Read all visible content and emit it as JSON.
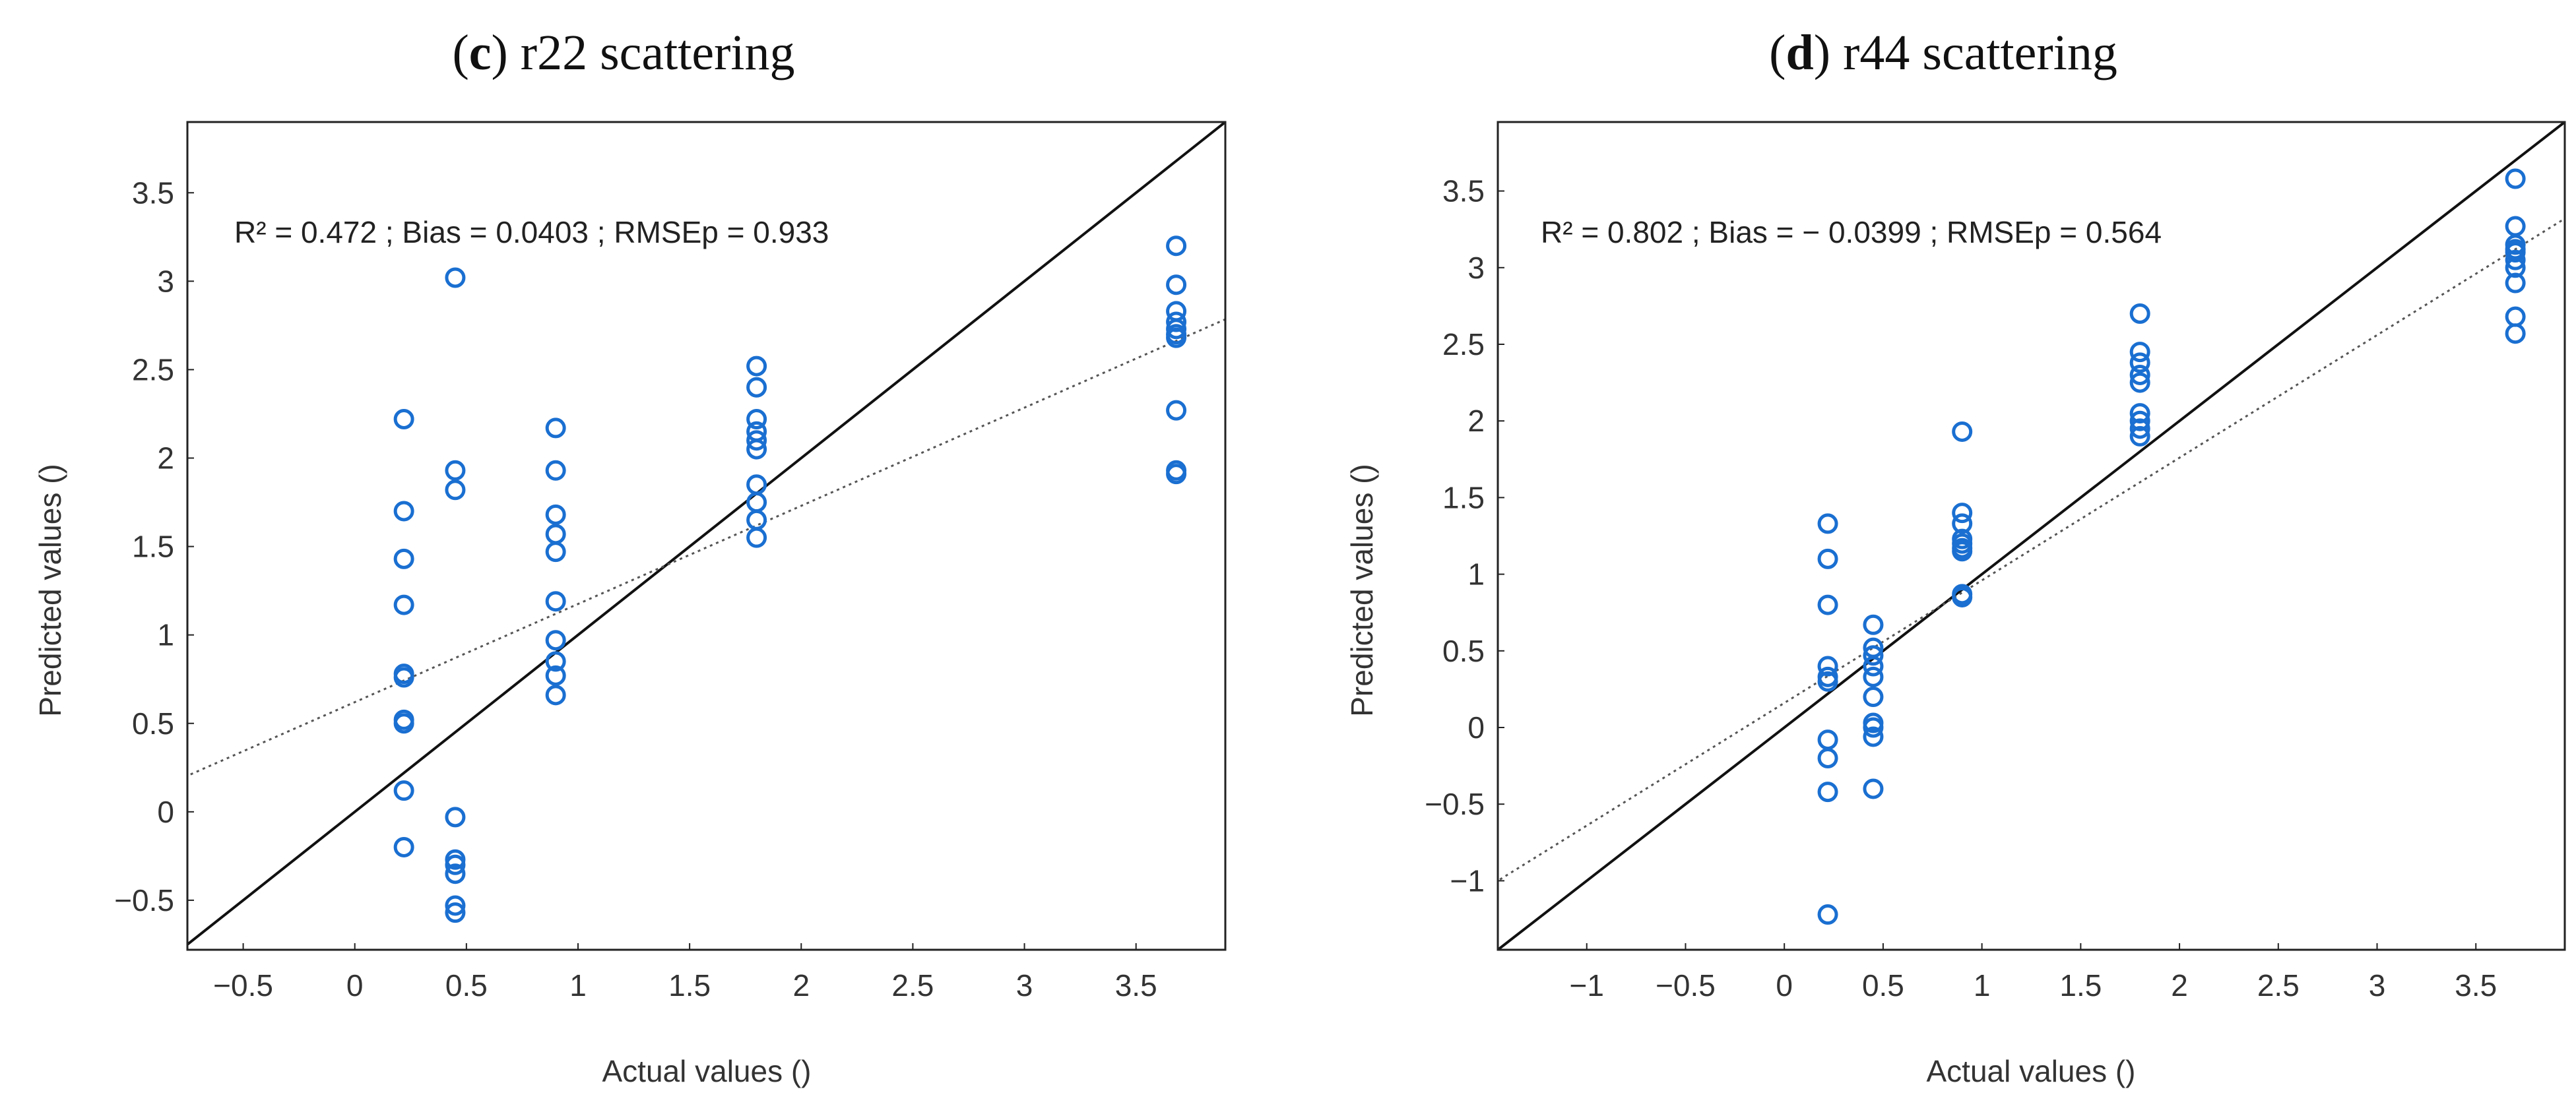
{
  "chart_data": [
    {
      "type": "scatter",
      "title_letter": "c",
      "title_rest": " r22 scattering",
      "xlabel": "Actual values ()",
      "ylabel": "Predicted values ()",
      "annotation": "R² = 0.472 ; Bias = 0.0403 ; RMSEp = 0.933",
      "xlim": [
        -0.75,
        3.9
      ],
      "ylim": [
        -0.78,
        3.9
      ],
      "xticks": [
        -0.5,
        0,
        0.5,
        1,
        1.5,
        2,
        2.5,
        3,
        3.5
      ],
      "xtick_labels": [
        "−0.5",
        "0",
        "0.5",
        "1",
        "1.5",
        "2",
        "2.5",
        "3",
        "3.5"
      ],
      "yticks": [
        -0.5,
        0,
        0.5,
        1,
        1.5,
        2,
        2.5,
        3,
        3.5
      ],
      "ytick_labels": [
        "−0.5",
        "0",
        "0.5",
        "1",
        "1.5",
        "2",
        "2.5",
        "3",
        "3.5"
      ],
      "identity_line": true,
      "fit_line": {
        "slope": 0.555,
        "intercept": 0.62
      },
      "points": [
        [
          0.22,
          2.22
        ],
        [
          0.22,
          1.7
        ],
        [
          0.22,
          1.43
        ],
        [
          0.22,
          1.17
        ],
        [
          0.22,
          0.78
        ],
        [
          0.22,
          0.76
        ],
        [
          0.22,
          0.52
        ],
        [
          0.22,
          0.5
        ],
        [
          0.22,
          0.12
        ],
        [
          0.22,
          -0.2
        ],
        [
          0.45,
          3.02
        ],
        [
          0.45,
          1.93
        ],
        [
          0.45,
          1.82
        ],
        [
          0.45,
          -0.03
        ],
        [
          0.45,
          -0.27
        ],
        [
          0.45,
          -0.3
        ],
        [
          0.45,
          -0.35
        ],
        [
          0.45,
          -0.53
        ],
        [
          0.45,
          -0.57
        ],
        [
          0.9,
          2.17
        ],
        [
          0.9,
          1.93
        ],
        [
          0.9,
          1.68
        ],
        [
          0.9,
          1.57
        ],
        [
          0.9,
          1.47
        ],
        [
          0.9,
          1.19
        ],
        [
          0.9,
          0.97
        ],
        [
          0.9,
          0.85
        ],
        [
          0.9,
          0.77
        ],
        [
          0.9,
          0.66
        ],
        [
          1.8,
          2.52
        ],
        [
          1.8,
          2.4
        ],
        [
          1.8,
          2.22
        ],
        [
          1.8,
          2.15
        ],
        [
          1.8,
          2.1
        ],
        [
          1.8,
          2.05
        ],
        [
          1.8,
          1.85
        ],
        [
          1.8,
          1.75
        ],
        [
          1.8,
          1.65
        ],
        [
          1.8,
          1.55
        ],
        [
          3.68,
          3.2
        ],
        [
          3.68,
          2.98
        ],
        [
          3.68,
          2.83
        ],
        [
          3.68,
          2.77
        ],
        [
          3.68,
          2.73
        ],
        [
          3.68,
          2.7
        ],
        [
          3.68,
          2.68
        ],
        [
          3.68,
          2.27
        ],
        [
          3.68,
          1.93
        ],
        [
          3.68,
          1.91
        ]
      ]
    },
    {
      "type": "scatter",
      "title_letter": "d",
      "title_rest": " r44 scattering",
      "xlabel": "Actual values ()",
      "ylabel": "Predicted values ()",
      "annotation": "R² = 0.802 ; Bias = − 0.0399 ; RMSEp = 0.564",
      "xlim": [
        -1.45,
        3.95
      ],
      "ylim": [
        -1.45,
        3.95
      ],
      "xticks": [
        -1,
        -0.5,
        0,
        0.5,
        1,
        1.5,
        2,
        2.5,
        3,
        3.5
      ],
      "xtick_labels": [
        "−1",
        "−0.5",
        "0",
        "0.5",
        "1",
        "1.5",
        "2",
        "2.5",
        "3",
        "3.5"
      ],
      "yticks": [
        -1,
        -0.5,
        0,
        0.5,
        1,
        1.5,
        2,
        2.5,
        3,
        3.5
      ],
      "ytick_labels": [
        "−1",
        "−0.5",
        "0",
        "0.5",
        "1",
        "1.5",
        "2",
        "2.5",
        "3",
        "3.5"
      ],
      "identity_line": true,
      "fit_line": {
        "slope": 0.8,
        "intercept": 0.16
      },
      "points": [
        [
          0.22,
          1.33
        ],
        [
          0.22,
          1.1
        ],
        [
          0.22,
          0.8
        ],
        [
          0.22,
          0.4
        ],
        [
          0.22,
          0.33
        ],
        [
          0.22,
          0.3
        ],
        [
          0.22,
          -0.08
        ],
        [
          0.22,
          -0.2
        ],
        [
          0.22,
          -0.42
        ],
        [
          0.22,
          -1.22
        ],
        [
          0.45,
          0.67
        ],
        [
          0.45,
          0.52
        ],
        [
          0.45,
          0.47
        ],
        [
          0.45,
          0.4
        ],
        [
          0.45,
          0.33
        ],
        [
          0.45,
          0.2
        ],
        [
          0.45,
          0.03
        ],
        [
          0.45,
          0.0
        ],
        [
          0.45,
          -0.06
        ],
        [
          0.45,
          -0.4
        ],
        [
          0.9,
          1.93
        ],
        [
          0.9,
          1.4
        ],
        [
          0.9,
          1.33
        ],
        [
          0.9,
          1.23
        ],
        [
          0.9,
          1.2
        ],
        [
          0.9,
          1.17
        ],
        [
          0.9,
          1.15
        ],
        [
          0.9,
          0.87
        ],
        [
          0.9,
          0.85
        ],
        [
          1.8,
          2.7
        ],
        [
          1.8,
          2.45
        ],
        [
          1.8,
          2.38
        ],
        [
          1.8,
          2.3
        ],
        [
          1.8,
          2.25
        ],
        [
          1.8,
          2.05
        ],
        [
          1.8,
          2.0
        ],
        [
          1.8,
          1.95
        ],
        [
          1.8,
          1.9
        ],
        [
          3.7,
          3.58
        ],
        [
          3.7,
          3.27
        ],
        [
          3.7,
          3.15
        ],
        [
          3.7,
          3.12
        ],
        [
          3.7,
          3.1
        ],
        [
          3.7,
          3.05
        ],
        [
          3.7,
          3.0
        ],
        [
          3.7,
          2.9
        ],
        [
          3.7,
          2.68
        ],
        [
          3.7,
          2.57
        ]
      ]
    }
  ],
  "colors": {
    "marker": "#1a6fd1",
    "frame": "#222222",
    "identity": "#111111",
    "fit": "#555555"
  }
}
